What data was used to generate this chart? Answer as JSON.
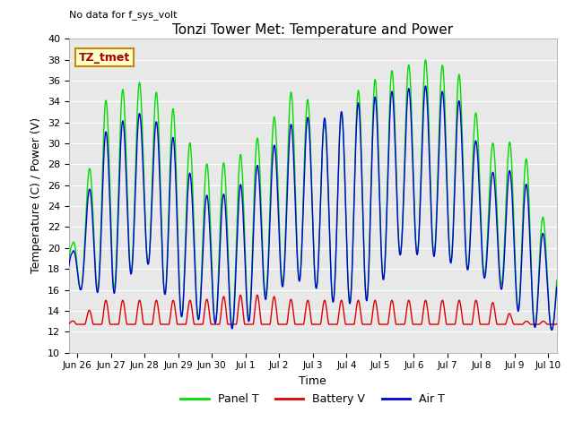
{
  "title": "Tonzi Tower Met: Temperature and Power",
  "ylabel": "Temperature (C) / Power (V)",
  "xlabel": "Time",
  "top_label": "No data for f_sys_volt",
  "annotation": "TZ_tmet",
  "ylim": [
    10,
    40
  ],
  "yticks": [
    10,
    12,
    14,
    16,
    18,
    20,
    22,
    24,
    26,
    28,
    30,
    32,
    34,
    36,
    38,
    40
  ],
  "background_color": "#e8e8e8",
  "panel_color": "#00dd00",
  "battery_color": "#dd0000",
  "air_color": "#0000dd",
  "xtick_labels": [
    "Jun 26",
    "Jun 27",
    "Jun 28",
    "Jun 29",
    "Jun 30",
    "Jul 1",
    "Jul 2",
    "Jul 3",
    "Jul 4",
    "Jul 5",
    "Jul 6",
    "Jul 7",
    "Jul 8",
    "Jul 9",
    "Jul 10"
  ],
  "panel_peaks": [
    20.3,
    34.0,
    36.0,
    34.2,
    28.0,
    28.2,
    31.2,
    35.7,
    31.3,
    35.4,
    37.0,
    38.0,
    37.0,
    30.0,
    30.2,
    19.5
  ],
  "panel_troughs": [
    16.0,
    16.0,
    19.0,
    13.5,
    13.0,
    12.2,
    16.5,
    17.0,
    14.5,
    15.0,
    19.5,
    19.5,
    18.0,
    17.0,
    12.5,
    12.0
  ],
  "air_peaks": [
    19.5,
    31.0,
    33.0,
    31.5,
    25.0,
    25.2,
    28.7,
    32.5,
    32.4,
    34.0,
    35.0,
    35.5,
    34.5,
    27.2,
    27.5,
    18.5
  ],
  "air_troughs": [
    16.0,
    15.5,
    19.0,
    13.5,
    13.0,
    12.0,
    16.0,
    17.0,
    14.5,
    15.0,
    19.5,
    19.2,
    18.0,
    16.5,
    12.5,
    12.0
  ],
  "battery_peaks": [
    13.0,
    15.0,
    15.0,
    15.0,
    15.0,
    15.5,
    15.5,
    15.0,
    15.0,
    15.0,
    15.0,
    15.0,
    15.0,
    15.0,
    13.0,
    13.0
  ],
  "battery_base": 12.7
}
